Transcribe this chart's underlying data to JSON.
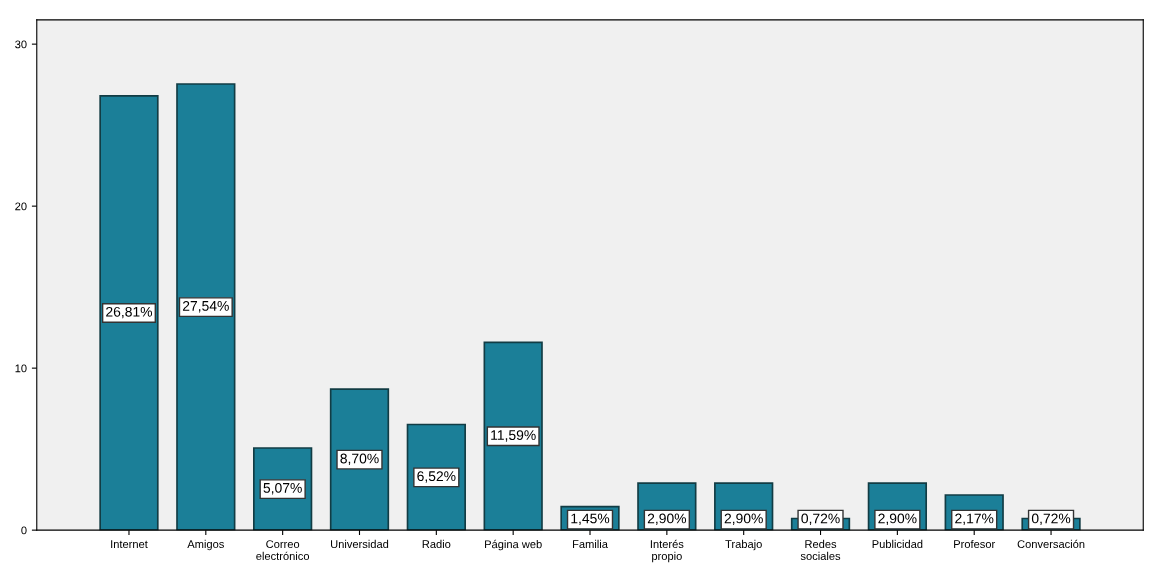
{
  "chart_data": {
    "type": "bar",
    "categories": [
      "Internet",
      "Amigos",
      "Correo\nelectrónico",
      "Universidad",
      "Radio",
      "Página web",
      "Familia",
      "Interés\npropio",
      "Trabajo",
      "Redes\nsociales",
      "Publicidad",
      "Profesor",
      "Conversación"
    ],
    "values": [
      26.81,
      27.54,
      5.07,
      8.7,
      6.52,
      11.59,
      1.45,
      2.9,
      2.9,
      0.72,
      2.9,
      2.17,
      0.72
    ],
    "value_labels": [
      "26,81%",
      "27,54%",
      "5,07%",
      "8,70%",
      "6,52%",
      "11,59%",
      "1,45%",
      "2,90%",
      "2,90%",
      "0,72%",
      "2,90%",
      "2,17%",
      "0,72%"
    ],
    "color": "#1b7f98",
    "ylim": [
      0,
      31.5
    ],
    "yticks": [
      0,
      10,
      20,
      30
    ],
    "grid": false
  }
}
